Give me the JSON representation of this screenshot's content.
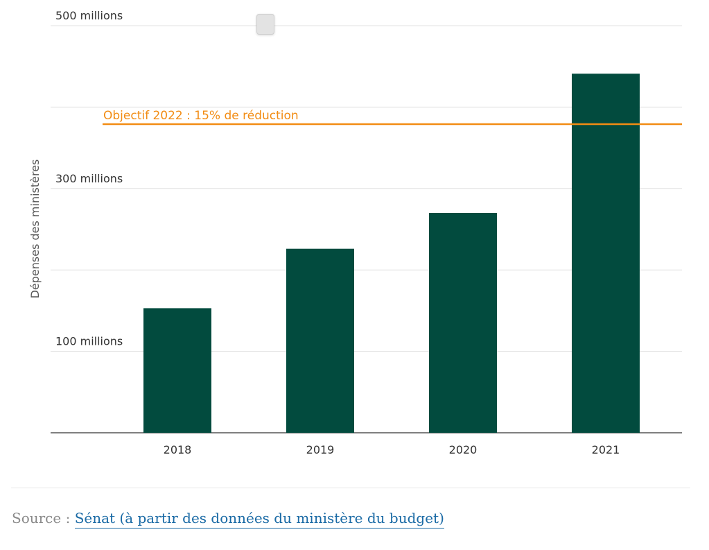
{
  "chart_data": {
    "type": "bar",
    "categories": [
      "2018",
      "2019",
      "2020",
      "2021"
    ],
    "values": [
      153,
      226,
      270,
      441
    ],
    "ylabel": "Dépenses des ministères",
    "ylim": [
      0,
      500
    ],
    "yticks": [
      {
        "value": 100,
        "label": "100 millions"
      },
      {
        "value": 300,
        "label": "300 millions"
      },
      {
        "value": 500,
        "label": "500 millions"
      }
    ],
    "gridlines": [
      100,
      200,
      300,
      400,
      500
    ],
    "grid": true,
    "bar_color": "#024b3e",
    "reference_line": {
      "label": "Objectif 2022 : 15% de réduction",
      "value": 379,
      "color": "#f28c13"
    }
  },
  "source": {
    "prefix": "Source : ",
    "link_text": "Sénat (à partir des données du ministère du budget)"
  }
}
